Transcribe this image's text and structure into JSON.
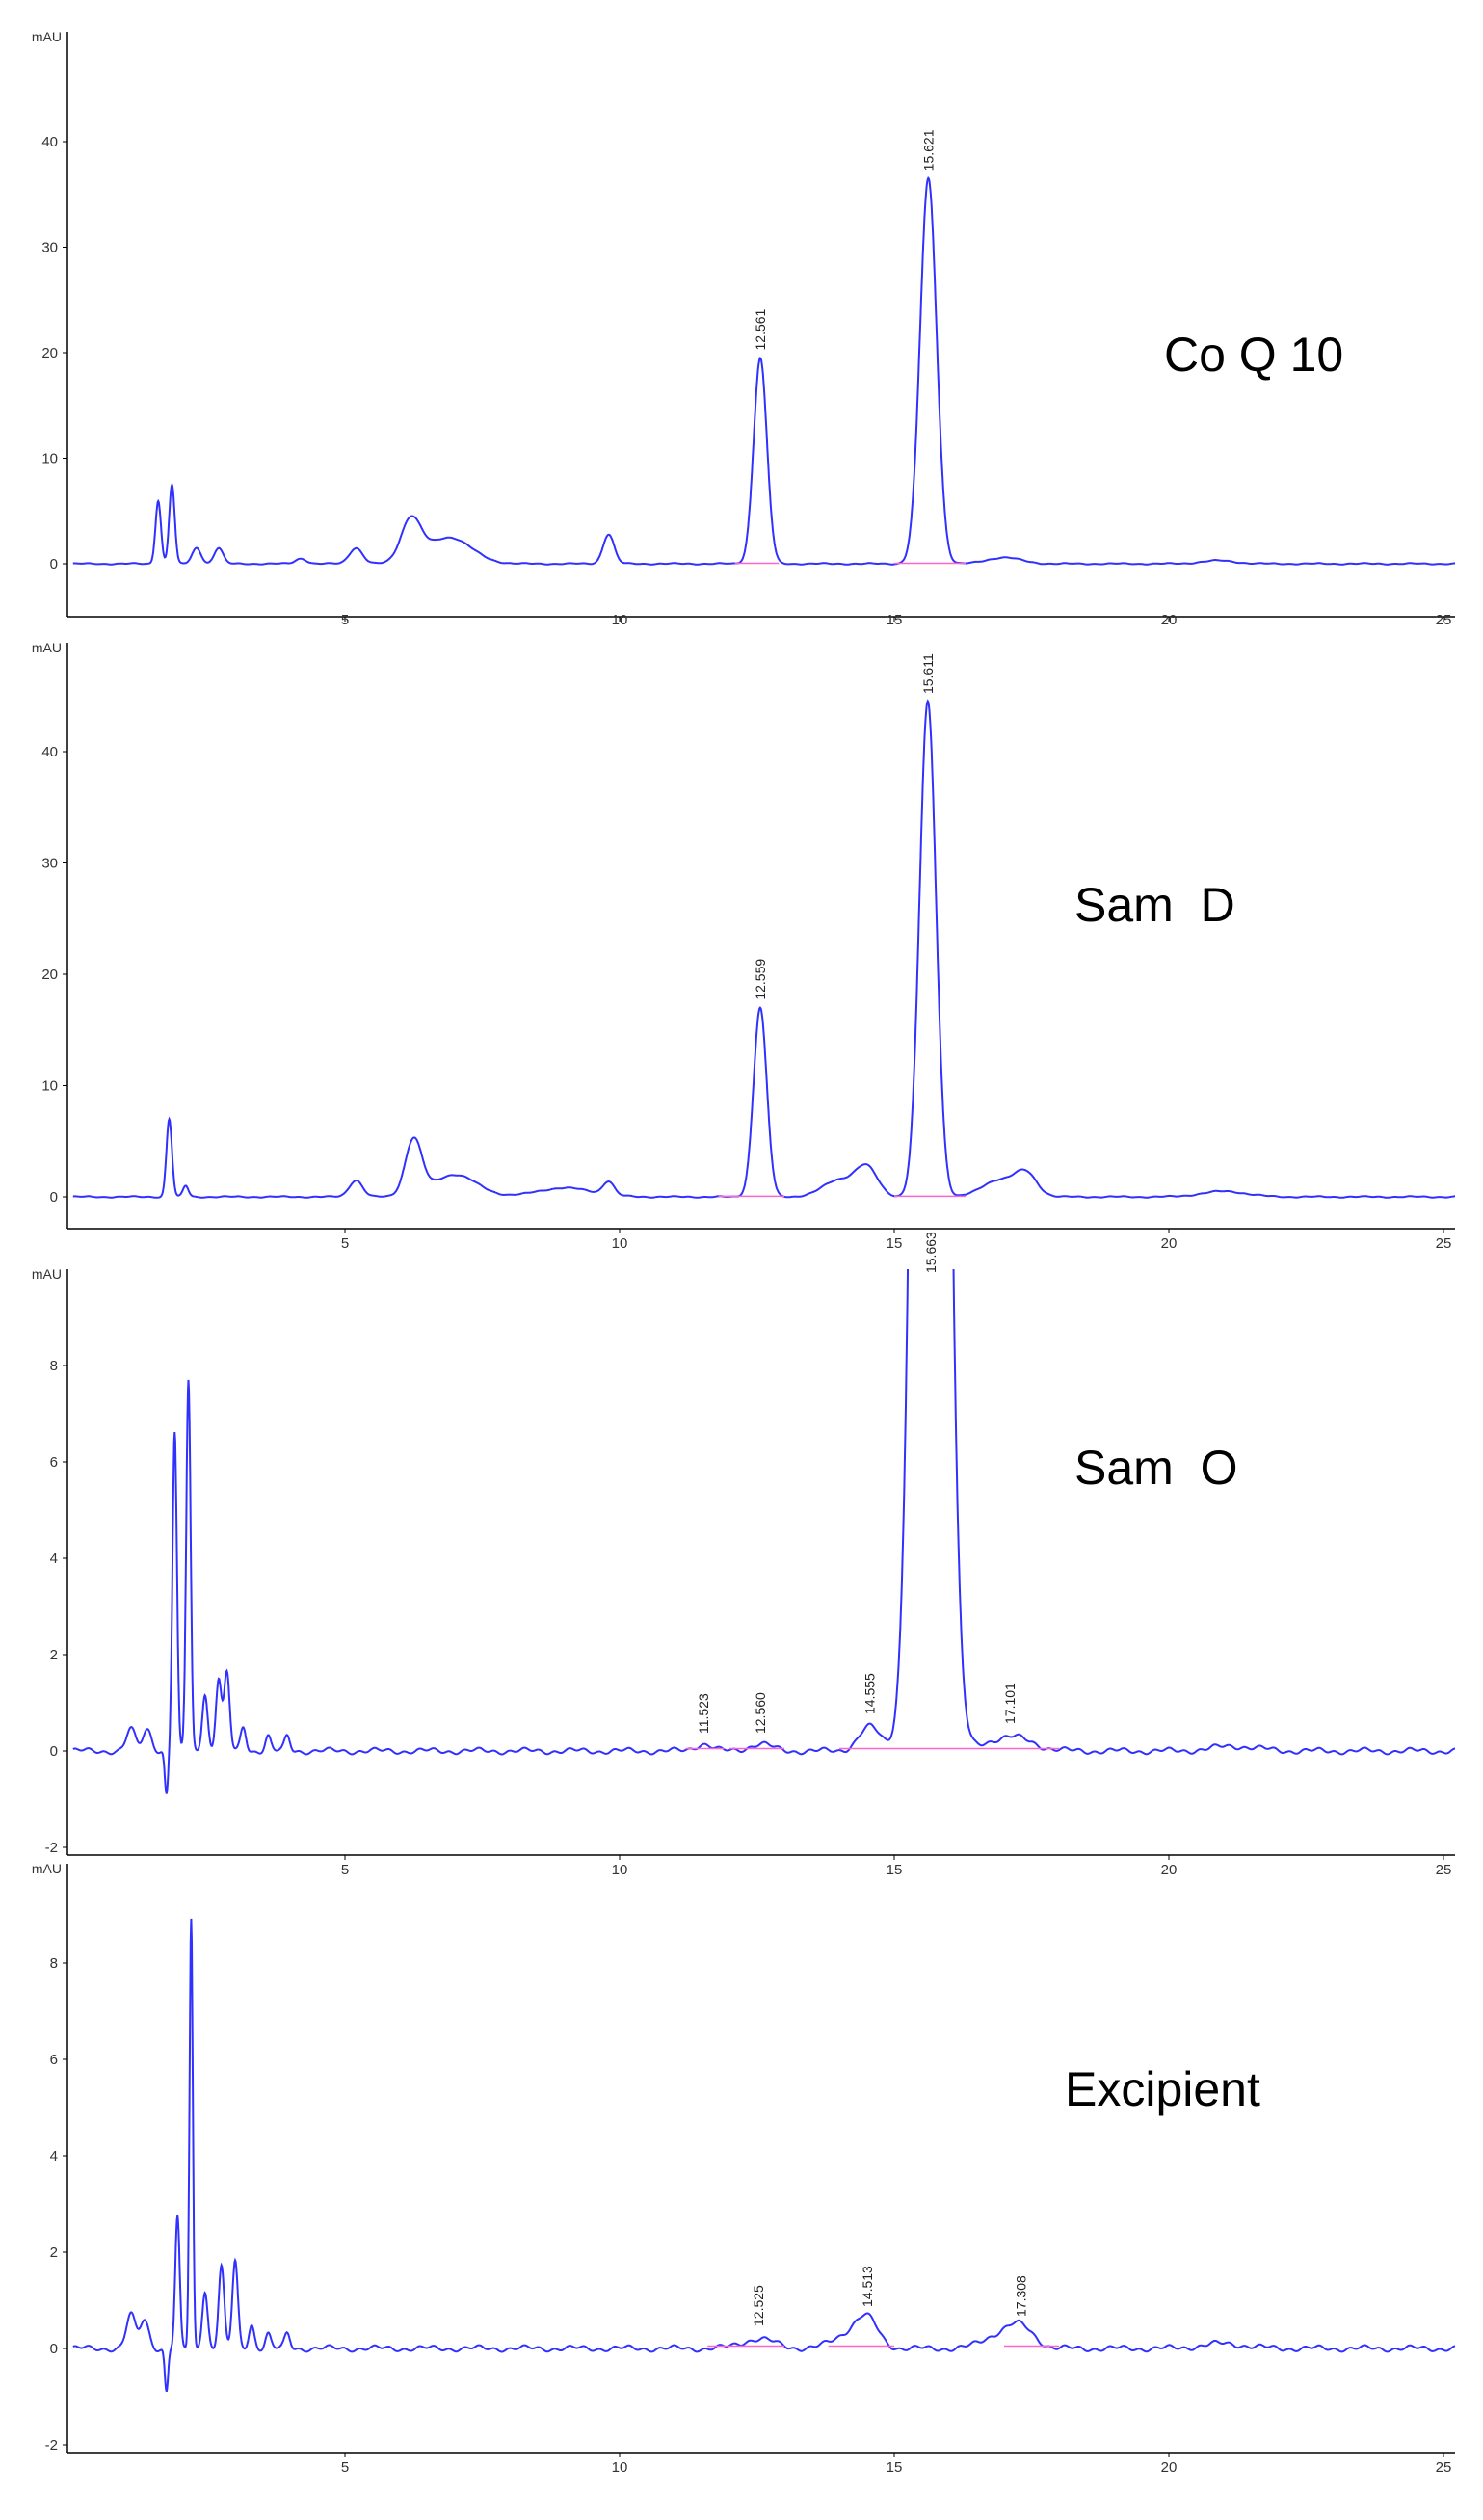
{
  "chart_data": [
    {
      "type": "line",
      "sample_label": "Co Q 10",
      "ylabel": "mAU",
      "ylim": [
        -1,
        48
      ],
      "xlim": [
        0,
        25.3
      ],
      "yticks": [
        0,
        10,
        20,
        30,
        40
      ],
      "xticks": [
        5,
        10,
        15,
        20,
        25
      ],
      "peaks": [
        [
          1.6,
          6,
          0.05
        ],
        [
          1.85,
          7.5,
          0.05
        ],
        [
          2.3,
          1.5,
          0.08
        ],
        [
          2.7,
          1.5,
          0.08
        ],
        [
          4.2,
          0.5,
          0.1
        ],
        [
          5.2,
          1.5,
          0.12
        ],
        [
          6.2,
          4,
          0.18
        ],
        [
          6.9,
          2.5,
          0.4
        ],
        [
          9.8,
          2.8,
          0.1
        ],
        [
          12.561,
          19.5,
          0.12
        ],
        [
          15.621,
          36.5,
          0.15
        ],
        [
          17,
          0.6,
          0.3
        ],
        [
          20.9,
          0.3,
          0.3
        ]
      ],
      "peak_labels": [
        {
          "rt": "12.561",
          "x": 12.561,
          "y": 19.5
        },
        {
          "rt": "15.621",
          "x": 15.621,
          "y": 36.5
        }
      ],
      "baselines": [
        [
          12.1,
          12.9
        ],
        [
          15.0,
          16.3
        ]
      ]
    },
    {
      "type": "line",
      "sample_label": "Sam  D",
      "ylabel": "mAU",
      "ylim": [
        -1,
        48
      ],
      "xlim": [
        0,
        25.3
      ],
      "yticks": [
        0,
        10,
        20,
        30,
        40
      ],
      "xticks": [
        5,
        10,
        15,
        20,
        25
      ],
      "peaks": [
        [
          1.8,
          7,
          0.05
        ],
        [
          2.1,
          1,
          0.05
        ],
        [
          5.2,
          1.5,
          0.12
        ],
        [
          6.25,
          5,
          0.15
        ],
        [
          7,
          2,
          0.4
        ],
        [
          9,
          0.8,
          0.5
        ],
        [
          9.8,
          1.2,
          0.1
        ],
        [
          12.559,
          17,
          0.12
        ],
        [
          14.0,
          1.5,
          0.3
        ],
        [
          14.5,
          2.5,
          0.2
        ],
        [
          15.611,
          44.5,
          0.15
        ],
        [
          16.9,
          1.5,
          0.3
        ],
        [
          17.4,
          2,
          0.2
        ],
        [
          21,
          0.5,
          0.4
        ]
      ],
      "peak_labels": [
        {
          "rt": "12.559",
          "x": 12.559,
          "y": 17
        },
        {
          "rt": "15.611",
          "x": 15.611,
          "y": 44.5
        }
      ],
      "baselines": [
        [
          11.8,
          13.0
        ],
        [
          15.0,
          16.3
        ]
      ]
    },
    {
      "type": "line",
      "sample_label": "Sam  O",
      "ylabel": "mAU",
      "ylim": [
        -2.2,
        10
      ],
      "xlim": [
        0,
        25.3
      ],
      "yticks": [
        -2,
        0,
        2,
        4,
        6,
        8
      ],
      "xticks": [
        5,
        10,
        15,
        20,
        25
      ],
      "peaks": [
        [
          1.1,
          0.45,
          0.08
        ],
        [
          1.4,
          0.45,
          0.08
        ],
        [
          1.75,
          -0.9,
          0.03
        ],
        [
          1.9,
          6.6,
          0.04
        ],
        [
          2.15,
          7.7,
          0.04
        ],
        [
          2.45,
          1.2,
          0.05
        ],
        [
          2.7,
          1.5,
          0.05
        ],
        [
          2.85,
          1.6,
          0.05
        ],
        [
          3.15,
          0.5,
          0.05
        ],
        [
          3.6,
          0.3,
          0.05
        ],
        [
          3.95,
          0.3,
          0.05
        ],
        [
          11.523,
          0.15,
          0.15
        ],
        [
          12.56,
          0.15,
          0.2
        ],
        [
          14.555,
          0.5,
          0.2
        ],
        [
          15.663,
          60,
          0.22
        ],
        [
          17.101,
          0.3,
          0.4
        ],
        [
          21.2,
          0.1,
          0.4
        ]
      ],
      "peak_labels": [
        {
          "rt": "11.523",
          "x": 11.523,
          "y": 0.2
        },
        {
          "rt": "12.560",
          "x": 12.56,
          "y": 0.2
        },
        {
          "rt": "14.555",
          "x": 14.555,
          "y": 0.6
        },
        {
          "rt": "15.663",
          "x": 15.663,
          "y": 10
        },
        {
          "rt": "17.101",
          "x": 17.101,
          "y": 0.4
        }
      ],
      "baselines": [
        [
          11.2,
          11.9
        ],
        [
          12.0,
          13.0
        ],
        [
          14.0,
          15.0
        ],
        [
          15.0,
          16.7
        ],
        [
          16.7,
          18.0
        ]
      ]
    },
    {
      "type": "line",
      "sample_label": "Excipient",
      "ylabel": "mAU",
      "ylim": [
        -2.2,
        9.9
      ],
      "xlim": [
        0,
        25.3
      ],
      "yticks": [
        -2,
        0,
        2,
        4,
        6,
        8
      ],
      "xticks": [
        5,
        10,
        15,
        20,
        25
      ],
      "peaks": [
        [
          1.1,
          0.7,
          0.08
        ],
        [
          1.35,
          0.6,
          0.08
        ],
        [
          1.75,
          -0.9,
          0.03
        ],
        [
          1.95,
          2.7,
          0.04
        ],
        [
          2.2,
          8.9,
          0.03
        ],
        [
          2.45,
          1.2,
          0.05
        ],
        [
          2.75,
          1.7,
          0.05
        ],
        [
          3.0,
          1.8,
          0.05
        ],
        [
          3.3,
          0.5,
          0.05
        ],
        [
          3.6,
          0.3,
          0.05
        ],
        [
          3.95,
          0.3,
          0.05
        ],
        [
          12.525,
          0.2,
          0.3
        ],
        [
          14.2,
          0.3,
          0.3
        ],
        [
          14.513,
          0.5,
          0.2
        ],
        [
          16.9,
          0.25,
          0.3
        ],
        [
          17.308,
          0.4,
          0.25
        ],
        [
          21,
          0.1,
          0.4
        ]
      ],
      "peak_labels": [
        {
          "rt": "12.525",
          "x": 12.525,
          "y": 0.3
        },
        {
          "rt": "14.513",
          "x": 14.513,
          "y": 0.7
        },
        {
          "rt": "17.308",
          "x": 17.308,
          "y": 0.5
        }
      ],
      "baselines": [
        [
          11.6,
          13.0
        ],
        [
          13.8,
          15.0
        ],
        [
          17.0,
          18.0
        ]
      ]
    }
  ],
  "colors": {
    "trace": "#3030ff",
    "baseline": "#ff66cc",
    "axis": "#000000"
  }
}
